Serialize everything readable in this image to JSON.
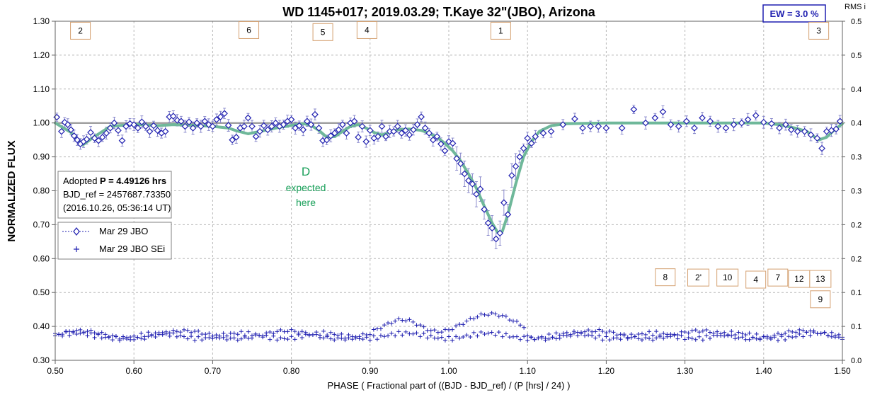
{
  "chart_data": {
    "type": "scatter",
    "title": "WD 1145+017; 2019.03.29; T.Kaye 32\"(JBO), Arizona",
    "xlabel": "PHASE ( Fractional part of ((BJD - BJD_ref) / (P [hrs] / 24) )",
    "ylabel": "NORMALIZED FLUX",
    "y2label": "RMS i",
    "xlim": [
      0.5,
      1.5
    ],
    "ylim": [
      0.3,
      1.3
    ],
    "y2lim": [
      0.0,
      0.5
    ],
    "xticks": [
      "0.50",
      "0.60",
      "0.70",
      "0.80",
      "0.90",
      "1.00",
      "1.10",
      "1.20",
      "1.30",
      "1.40",
      "1.50"
    ],
    "yticks": [
      "0.30",
      "0.40",
      "0.50",
      "0.60",
      "0.70",
      "0.80",
      "0.90",
      "1.00",
      "1.10",
      "1.20",
      "1.30"
    ],
    "y2ticks": [
      "0.0",
      "0.1",
      "0.1",
      "0.2",
      "0.2",
      "0.3",
      "0.3",
      "0.4",
      "0.4",
      "0.5",
      "0.5"
    ],
    "grid": true,
    "ew_label": "EW =  3.0 %",
    "info_box": {
      "line1_prefix": "Adopted ",
      "line1_bold": "P = 4.49126 hrs",
      "line2": "BJD_ref = 2457687.73350",
      "line3": "(2016.10.26, 05:36:14 UT)"
    },
    "annotation": {
      "line1": "D",
      "line2": "expected",
      "line3": "here",
      "color": "#1aa05a"
    },
    "legend": {
      "placement": "left",
      "entries": [
        {
          "label": "Mar 29 JBO",
          "marker": "diamond"
        },
        {
          "label": "Mar 29 JBO SEi",
          "marker": "plus"
        }
      ]
    },
    "dip_labels": [
      {
        "label": "2",
        "x": 0.532,
        "y": 1.272
      },
      {
        "label": "6",
        "x": 0.746,
        "y": 1.274
      },
      {
        "label": "5",
        "x": 0.84,
        "y": 1.268
      },
      {
        "label": "4",
        "x": 0.896,
        "y": 1.274
      },
      {
        "label": "1",
        "x": 1.066,
        "y": 1.272
      },
      {
        "label": "3",
        "x": 1.47,
        "y": 1.272
      },
      {
        "label": "8",
        "x": 1.275,
        "y": 0.545
      },
      {
        "label": "2'",
        "x": 1.317,
        "y": 0.544
      },
      {
        "label": "10",
        "x": 1.354,
        "y": 0.544
      },
      {
        "label": "4",
        "x": 1.39,
        "y": 0.538
      },
      {
        "label": "7",
        "x": 1.418,
        "y": 0.544
      },
      {
        "label": "12",
        "x": 1.445,
        "y": 0.54
      },
      {
        "label": "13",
        "x": 1.472,
        "y": 0.54
      },
      {
        "label": "9",
        "x": 1.472,
        "y": 0.48
      }
    ],
    "colors": {
      "data": "#1f1fb0",
      "model": "#6fb89a",
      "baseline": "#a0a0a0",
      "label_border": "#d4a070",
      "ew_text": "#1f1fb0"
    },
    "model_curve": [
      [
        0.5,
        1.0
      ],
      [
        0.52,
        0.972
      ],
      [
        0.535,
        0.935
      ],
      [
        0.55,
        0.96
      ],
      [
        0.57,
        0.99
      ],
      [
        0.6,
        0.996
      ],
      [
        0.63,
        0.992
      ],
      [
        0.65,
        0.995
      ],
      [
        0.68,
        0.993
      ],
      [
        0.7,
        0.99
      ],
      [
        0.72,
        0.985
      ],
      [
        0.73,
        0.977
      ],
      [
        0.745,
        0.968
      ],
      [
        0.76,
        0.975
      ],
      [
        0.78,
        0.985
      ],
      [
        0.8,
        0.993
      ],
      [
        0.815,
        0.998
      ],
      [
        0.825,
        0.993
      ],
      [
        0.835,
        0.978
      ],
      [
        0.845,
        0.958
      ],
      [
        0.855,
        0.96
      ],
      [
        0.865,
        0.975
      ],
      [
        0.875,
        0.99
      ],
      [
        0.885,
        0.995
      ],
      [
        0.895,
        0.985
      ],
      [
        0.905,
        0.972
      ],
      [
        0.915,
        0.965
      ],
      [
        0.925,
        0.972
      ],
      [
        0.935,
        0.98
      ],
      [
        0.95,
        0.982
      ],
      [
        0.965,
        0.978
      ],
      [
        0.975,
        0.97
      ],
      [
        0.985,
        0.958
      ],
      [
        0.995,
        0.94
      ],
      [
        1.005,
        0.918
      ],
      [
        1.015,
        0.888
      ],
      [
        1.025,
        0.85
      ],
      [
        1.035,
        0.808
      ],
      [
        1.045,
        0.755
      ],
      [
        1.055,
        0.705
      ],
      [
        1.062,
        0.677
      ],
      [
        1.068,
        0.68
      ],
      [
        1.075,
        0.73
      ],
      [
        1.085,
        0.82
      ],
      [
        1.095,
        0.9
      ],
      [
        1.105,
        0.945
      ],
      [
        1.115,
        0.975
      ],
      [
        1.13,
        0.992
      ],
      [
        1.15,
        0.998
      ],
      [
        1.2,
        1.0
      ],
      [
        1.3,
        1.0
      ],
      [
        1.4,
        1.0
      ],
      [
        1.42,
        0.995
      ],
      [
        1.44,
        0.985
      ],
      [
        1.455,
        0.975
      ],
      [
        1.47,
        0.95
      ],
      [
        1.48,
        0.958
      ],
      [
        1.49,
        0.98
      ],
      [
        1.5,
        0.998
      ]
    ],
    "flux_points": [
      [
        0.502,
        1.017
      ],
      [
        0.508,
        0.975
      ],
      [
        0.512,
        1.002
      ],
      [
        0.516,
        0.995
      ],
      [
        0.52,
        0.98
      ],
      [
        0.524,
        0.962
      ],
      [
        0.528,
        0.95
      ],
      [
        0.532,
        0.938
      ],
      [
        0.536,
        0.945
      ],
      [
        0.54,
        0.952
      ],
      [
        0.545,
        0.972
      ],
      [
        0.55,
        0.955
      ],
      [
        0.555,
        0.948
      ],
      [
        0.56,
        0.958
      ],
      [
        0.565,
        0.97
      ],
      [
        0.57,
        0.985
      ],
      [
        0.575,
        1.0
      ],
      [
        0.58,
        0.978
      ],
      [
        0.585,
        0.948
      ],
      [
        0.59,
        0.99
      ],
      [
        0.595,
        0.998
      ],
      [
        0.6,
        0.995
      ],
      [
        0.605,
        0.985
      ],
      [
        0.61,
        1.003
      ],
      [
        0.615,
        0.99
      ],
      [
        0.62,
        0.975
      ],
      [
        0.625,
        0.992
      ],
      [
        0.63,
        0.978
      ],
      [
        0.635,
        0.97
      ],
      [
        0.64,
        0.975
      ],
      [
        0.645,
        1.018
      ],
      [
        0.65,
        1.02
      ],
      [
        0.655,
        1.008
      ],
      [
        0.66,
        1.005
      ],
      [
        0.665,
        0.99
      ],
      [
        0.67,
        1.003
      ],
      [
        0.675,
        0.985
      ],
      [
        0.68,
        1.0
      ],
      [
        0.685,
        0.99
      ],
      [
        0.69,
        1.005
      ],
      [
        0.695,
        0.995
      ],
      [
        0.7,
        0.99
      ],
      [
        0.705,
        1.01
      ],
      [
        0.71,
        1.018
      ],
      [
        0.715,
        1.028
      ],
      [
        0.72,
        0.993
      ],
      [
        0.725,
        0.95
      ],
      [
        0.73,
        0.958
      ],
      [
        0.735,
        0.985
      ],
      [
        0.74,
        0.99
      ],
      [
        0.745,
        1.015
      ],
      [
        0.75,
        0.99
      ],
      [
        0.755,
        0.96
      ],
      [
        0.76,
        0.975
      ],
      [
        0.765,
        0.992
      ],
      [
        0.77,
        0.98
      ],
      [
        0.775,
        0.99
      ],
      [
        0.78,
        1.0
      ],
      [
        0.785,
        0.99
      ],
      [
        0.79,
        0.995
      ],
      [
        0.795,
        1.005
      ],
      [
        0.8,
        1.01
      ],
      [
        0.805,
        0.985
      ],
      [
        0.81,
        0.992
      ],
      [
        0.815,
        0.98
      ],
      [
        0.82,
        1.005
      ],
      [
        0.825,
        0.995
      ],
      [
        0.83,
        1.025
      ],
      [
        0.835,
        0.985
      ],
      [
        0.84,
        0.948
      ],
      [
        0.845,
        0.95
      ],
      [
        0.85,
        0.962
      ],
      [
        0.855,
        0.97
      ],
      [
        0.86,
        0.98
      ],
      [
        0.865,
        0.995
      ],
      [
        0.87,
        0.97
      ],
      [
        0.875,
        1.0
      ],
      [
        0.88,
        1.005
      ],
      [
        0.885,
        0.958
      ],
      [
        0.89,
        0.99
      ],
      [
        0.895,
        0.945
      ],
      [
        0.9,
        0.978
      ],
      [
        0.905,
        0.955
      ],
      [
        0.91,
        0.96
      ],
      [
        0.915,
        0.99
      ],
      [
        0.92,
        0.96
      ],
      [
        0.925,
        0.975
      ],
      [
        0.93,
        0.975
      ],
      [
        0.935,
        0.99
      ],
      [
        0.94,
        0.97
      ],
      [
        0.945,
        0.978
      ],
      [
        0.95,
        0.965
      ],
      [
        0.955,
        0.98
      ],
      [
        0.96,
        0.995
      ],
      [
        0.965,
        1.018
      ],
      [
        0.97,
        0.985
      ],
      [
        0.975,
        0.97
      ],
      [
        0.98,
        0.95
      ],
      [
        0.985,
        0.96
      ],
      [
        0.99,
        0.938
      ],
      [
        0.995,
        0.918
      ],
      [
        1.0,
        0.945
      ],
      [
        1.005,
        0.94
      ],
      [
        1.01,
        0.895
      ],
      [
        1.015,
        0.88
      ],
      [
        1.02,
        0.85
      ],
      [
        1.025,
        0.83
      ],
      [
        1.03,
        0.82
      ],
      [
        1.035,
        0.79
      ],
      [
        1.04,
        0.805
      ],
      [
        1.045,
        0.745
      ],
      [
        1.05,
        0.705
      ],
      [
        1.055,
        0.69
      ],
      [
        1.06,
        0.658
      ],
      [
        1.065,
        0.675
      ],
      [
        1.07,
        0.765
      ],
      [
        1.075,
        0.73
      ],
      [
        1.08,
        0.845
      ],
      [
        1.085,
        0.872
      ],
      [
        1.09,
        0.9
      ],
      [
        1.095,
        0.925
      ],
      [
        1.1,
        0.955
      ],
      [
        1.105,
        0.94
      ],
      [
        1.11,
        0.96
      ],
      [
        1.12,
        0.97
      ],
      [
        1.13,
        0.975
      ],
      [
        1.145,
        0.995
      ],
      [
        1.16,
        1.012
      ],
      [
        1.17,
        0.985
      ],
      [
        1.18,
        0.99
      ],
      [
        1.19,
        0.99
      ],
      [
        1.2,
        0.985
      ],
      [
        1.22,
        0.985
      ],
      [
        1.235,
        1.04
      ],
      [
        1.25,
        1.0
      ],
      [
        1.262,
        1.015
      ],
      [
        1.272,
        1.033
      ],
      [
        1.282,
        0.995
      ],
      [
        1.292,
        0.99
      ],
      [
        1.302,
        1.005
      ],
      [
        1.312,
        0.985
      ],
      [
        1.322,
        1.015
      ],
      [
        1.332,
        1.005
      ],
      [
        1.342,
        0.99
      ],
      [
        1.352,
        0.985
      ],
      [
        1.362,
        0.995
      ],
      [
        1.372,
        1.0
      ],
      [
        1.38,
        1.01
      ],
      [
        1.39,
        1.022
      ],
      [
        1.4,
        1.002
      ],
      [
        1.41,
        0.998
      ],
      [
        1.42,
        0.985
      ],
      [
        1.428,
        0.995
      ],
      [
        1.435,
        0.98
      ],
      [
        1.443,
        0.975
      ],
      [
        1.452,
        0.975
      ],
      [
        1.46,
        0.965
      ],
      [
        1.468,
        0.955
      ],
      [
        1.474,
        0.925
      ],
      [
        1.48,
        0.975
      ],
      [
        1.486,
        0.978
      ],
      [
        1.492,
        0.982
      ],
      [
        1.497,
        1.005
      ]
    ]
  }
}
